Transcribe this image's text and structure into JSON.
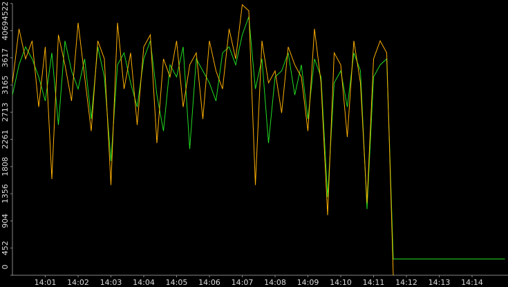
{
  "chart_data": {
    "type": "line",
    "categories": [
      null,
      null,
      null,
      null,
      null,
      "14:01",
      null,
      null,
      null,
      null,
      "14:02",
      null,
      null,
      null,
      null,
      "14:03",
      null,
      null,
      null,
      null,
      "14:04",
      null,
      null,
      null,
      null,
      "14:05",
      null,
      null,
      null,
      null,
      "14:06",
      null,
      null,
      null,
      null,
      "14:07",
      null,
      null,
      null,
      null,
      "14:08",
      null,
      null,
      null,
      null,
      "14:09",
      null,
      null,
      null,
      null,
      "14:10",
      null,
      null,
      null,
      null,
      "14:11",
      null,
      null,
      null,
      null,
      "14:12",
      null,
      null,
      null,
      null,
      "14:13",
      null,
      null,
      null,
      null,
      "14:14",
      null,
      null,
      null,
      null,
      null
    ],
    "series": [
      {
        "color": "#22dd22",
        "values": [
          3000,
          3500,
          3800,
          3600,
          3300,
          2900,
          3700,
          2500,
          3900,
          3400,
          3100,
          3600,
          2600,
          3800,
          3300,
          1900,
          3500,
          3700,
          3200,
          2800,
          3600,
          3900,
          3000,
          2400,
          3500,
          3300,
          3800,
          2100,
          3600,
          3400,
          3200,
          2900,
          3700,
          3800,
          3500,
          4000,
          4300,
          3100,
          3600,
          2200,
          3300,
          3400,
          3700,
          3000,
          3500,
          2600,
          3600,
          3300,
          1300,
          3200,
          3400,
          2800,
          3700,
          3400,
          1100,
          3300,
          3500,
          3600,
          270,
          270,
          270,
          270,
          270,
          270,
          270,
          270,
          270,
          270,
          270,
          270,
          270,
          270,
          270,
          270,
          270,
          270
        ]
      },
      {
        "color": "#ffb000",
        "values": [
          3200,
          4100,
          3600,
          3900,
          2800,
          3800,
          1600,
          4000,
          3500,
          2900,
          4200,
          3300,
          2400,
          3900,
          3600,
          1500,
          4200,
          3100,
          3700,
          2500,
          3800,
          4000,
          2200,
          3600,
          3300,
          3900,
          2800,
          3500,
          3700,
          2600,
          3900,
          3400,
          3100,
          4100,
          3600,
          4500,
          4400,
          1500,
          3900,
          3200,
          3400,
          2700,
          3800,
          3500,
          3300,
          2400,
          4100,
          3200,
          1000,
          3700,
          3500,
          2300,
          3900,
          3200,
          1200,
          3600,
          3900,
          3700,
          0,
          null,
          null,
          null,
          null,
          null,
          null,
          null,
          null,
          null,
          null,
          null,
          null,
          null,
          null,
          null,
          null,
          null
        ]
      }
    ],
    "ylim": [
      0,
      4522
    ],
    "yticks": [
      0,
      452,
      904,
      1356,
      1808,
      2261,
      2713,
      3165,
      3617,
      4069,
      4522
    ]
  }
}
